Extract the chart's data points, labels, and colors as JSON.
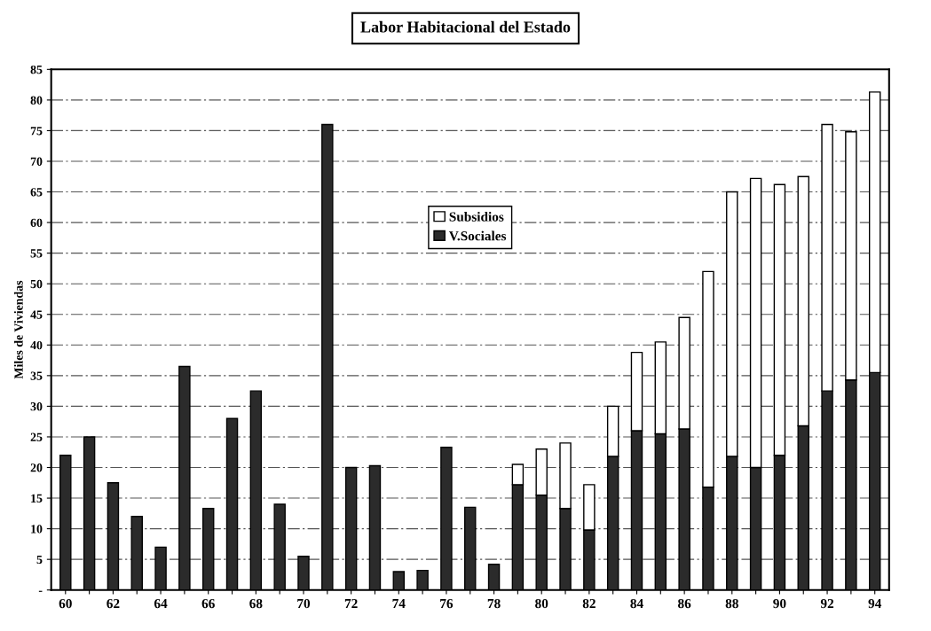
{
  "chart_data": {
    "type": "bar",
    "title": "Labor Habitacional del Estado",
    "ylabel": "Miles de Viviendas",
    "categories": [
      "60",
      null,
      "62",
      null,
      "64",
      null,
      "66",
      null,
      "68",
      null,
      "70",
      null,
      "72",
      null,
      "74",
      null,
      "76",
      null,
      "78",
      null,
      "80",
      null,
      "82",
      null,
      "84",
      null,
      "86",
      null,
      "88",
      null,
      "90",
      null,
      "92",
      null,
      "94"
    ],
    "stacked": true,
    "series": [
      {
        "name": "V.Sociales",
        "color": "#2b2b2b",
        "values": [
          22,
          25,
          17.5,
          12,
          7,
          36.5,
          13.3,
          28,
          32.5,
          14,
          5.5,
          76,
          20,
          20.3,
          3,
          3.2,
          23.3,
          13.5,
          4.2,
          17.2,
          15.5,
          13.3,
          9.8,
          21.8,
          26,
          25.5,
          26.3,
          16.8,
          21.8,
          20,
          22,
          26.8,
          32.5,
          34.3,
          35.5
        ]
      },
      {
        "name": "Subsidios",
        "color": "#ffffff",
        "values": [
          null,
          null,
          null,
          null,
          null,
          null,
          null,
          null,
          null,
          null,
          null,
          null,
          null,
          null,
          null,
          null,
          null,
          null,
          null,
          3.3,
          7.5,
          10.7,
          7.4,
          8.2,
          12.8,
          15,
          18.2,
          35.2,
          43.2,
          47.2,
          44.2,
          40.7,
          43.5,
          40.5,
          45.8
        ]
      }
    ],
    "ylim": [
      0,
      85
    ],
    "yticks": [
      {
        "value": 0,
        "label": "-"
      },
      5,
      10,
      15,
      20,
      25,
      30,
      35,
      40,
      45,
      50,
      55,
      60,
      65,
      70,
      75,
      80,
      85
    ],
    "grid": "y",
    "legend": "top"
  }
}
